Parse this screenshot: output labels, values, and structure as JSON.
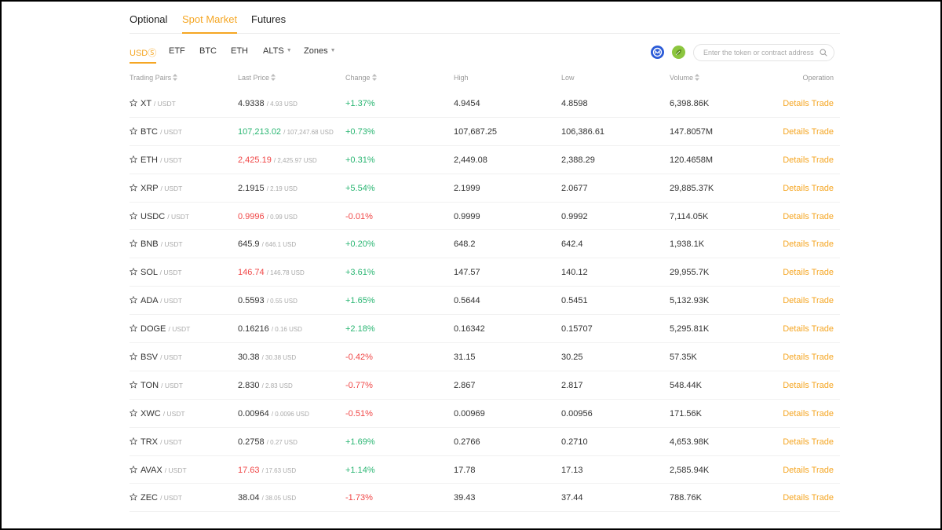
{
  "top_tabs": [
    {
      "label": "Optional",
      "active": false
    },
    {
      "label": "Spot Market",
      "active": true
    },
    {
      "label": "Futures",
      "active": false
    }
  ],
  "filter_tabs": [
    {
      "label": "USDⓈ",
      "active": true,
      "dropdown": false
    },
    {
      "label": "ETF",
      "active": false,
      "dropdown": false
    },
    {
      "label": "BTC",
      "active": false,
      "dropdown": false
    },
    {
      "label": "ETH",
      "active": false,
      "dropdown": false
    },
    {
      "label": "ALTS",
      "active": false,
      "dropdown": true
    },
    {
      "label": "Zones",
      "active": false,
      "dropdown": true
    }
  ],
  "toolbar": {
    "coin_icon_1_color": "#2b5bd7",
    "coin_icon_2_color": "#8cc63f",
    "search_placeholder": "Enter the token or contract address",
    "search_value": ""
  },
  "columns": {
    "pair": "Trading Pairs",
    "last": "Last Price",
    "change": "Change",
    "high": "High",
    "low": "Low",
    "volume": "Volume",
    "operation": "Operation"
  },
  "colors": {
    "accent": "#f5a623",
    "up": "#2bb673",
    "down": "#f04747"
  },
  "actions": {
    "details": "Details",
    "trade": "Trade"
  },
  "rows": [
    {
      "base": "XT",
      "quote": "/ USDT",
      "last": "4.9338",
      "last_usd": "/ 4.93 USD",
      "last_dir": "neutral",
      "change": "+1.37%",
      "change_dir": "up",
      "high": "4.9454",
      "low": "4.8598",
      "volume": "6,398.86K"
    },
    {
      "base": "BTC",
      "quote": "/ USDT",
      "last": "107,213.02",
      "last_usd": "/ 107,247.68 USD",
      "last_dir": "up",
      "change": "+0.73%",
      "change_dir": "up",
      "high": "107,687.25",
      "low": "106,386.61",
      "volume": "147.8057M"
    },
    {
      "base": "ETH",
      "quote": "/ USDT",
      "last": "2,425.19",
      "last_usd": "/ 2,425.97 USD",
      "last_dir": "down",
      "change": "+0.31%",
      "change_dir": "up",
      "high": "2,449.08",
      "low": "2,388.29",
      "volume": "120.4658M"
    },
    {
      "base": "XRP",
      "quote": "/ USDT",
      "last": "2.1915",
      "last_usd": "/ 2.19 USD",
      "last_dir": "neutral",
      "change": "+5.54%",
      "change_dir": "up",
      "high": "2.1999",
      "low": "2.0677",
      "volume": "29,885.37K"
    },
    {
      "base": "USDC",
      "quote": "/ USDT",
      "last": "0.9996",
      "last_usd": "/ 0.99 USD",
      "last_dir": "down",
      "change": "-0.01%",
      "change_dir": "down",
      "high": "0.9999",
      "low": "0.9992",
      "volume": "7,114.05K"
    },
    {
      "base": "BNB",
      "quote": "/ USDT",
      "last": "645.9",
      "last_usd": "/ 646.1 USD",
      "last_dir": "neutral",
      "change": "+0.20%",
      "change_dir": "up",
      "high": "648.2",
      "low": "642.4",
      "volume": "1,938.1K"
    },
    {
      "base": "SOL",
      "quote": "/ USDT",
      "last": "146.74",
      "last_usd": "/ 146.78 USD",
      "last_dir": "down",
      "change": "+3.61%",
      "change_dir": "up",
      "high": "147.57",
      "low": "140.12",
      "volume": "29,955.7K"
    },
    {
      "base": "ADA",
      "quote": "/ USDT",
      "last": "0.5593",
      "last_usd": "/ 0.55 USD",
      "last_dir": "neutral",
      "change": "+1.65%",
      "change_dir": "up",
      "high": "0.5644",
      "low": "0.5451",
      "volume": "5,132.93K"
    },
    {
      "base": "DOGE",
      "quote": "/ USDT",
      "last": "0.16216",
      "last_usd": "/ 0.16 USD",
      "last_dir": "neutral",
      "change": "+2.18%",
      "change_dir": "up",
      "high": "0.16342",
      "low": "0.15707",
      "volume": "5,295.81K"
    },
    {
      "base": "BSV",
      "quote": "/ USDT",
      "last": "30.38",
      "last_usd": "/ 30.38 USD",
      "last_dir": "neutral",
      "change": "-0.42%",
      "change_dir": "down",
      "high": "31.15",
      "low": "30.25",
      "volume": "57.35K"
    },
    {
      "base": "TON",
      "quote": "/ USDT",
      "last": "2.830",
      "last_usd": "/ 2.83 USD",
      "last_dir": "neutral",
      "change": "-0.77%",
      "change_dir": "down",
      "high": "2.867",
      "low": "2.817",
      "volume": "548.44K"
    },
    {
      "base": "XWC",
      "quote": "/ USDT",
      "last": "0.00964",
      "last_usd": "/ 0.0096 USD",
      "last_dir": "neutral",
      "change": "-0.51%",
      "change_dir": "down",
      "high": "0.00969",
      "low": "0.00956",
      "volume": "171.56K"
    },
    {
      "base": "TRX",
      "quote": "/ USDT",
      "last": "0.2758",
      "last_usd": "/ 0.27 USD",
      "last_dir": "neutral",
      "change": "+1.69%",
      "change_dir": "up",
      "high": "0.2766",
      "low": "0.2710",
      "volume": "4,653.98K"
    },
    {
      "base": "AVAX",
      "quote": "/ USDT",
      "last": "17.63",
      "last_usd": "/ 17.63 USD",
      "last_dir": "down",
      "change": "+1.14%",
      "change_dir": "up",
      "high": "17.78",
      "low": "17.13",
      "volume": "2,585.94K"
    },
    {
      "base": "ZEC",
      "quote": "/ USDT",
      "last": "38.04",
      "last_usd": "/ 38.05 USD",
      "last_dir": "neutral",
      "change": "-1.73%",
      "change_dir": "down",
      "high": "39.43",
      "low": "37.44",
      "volume": "788.76K"
    }
  ]
}
